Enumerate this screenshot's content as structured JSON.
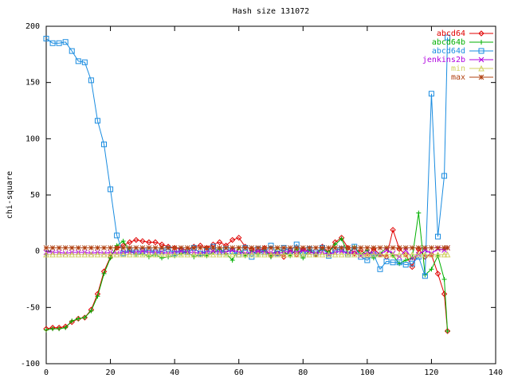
{
  "chart_data": {
    "type": "line",
    "title": "Hash size 131072",
    "y_label": "chi-square",
    "x": [
      0,
      2,
      4,
      6,
      8,
      10,
      12,
      14,
      16,
      18,
      20,
      22,
      24,
      26,
      28,
      30,
      32,
      34,
      36,
      38,
      40,
      42,
      44,
      46,
      48,
      50,
      52,
      54,
      56,
      58,
      60,
      62,
      64,
      66,
      68,
      70,
      72,
      74,
      76,
      78,
      80,
      82,
      84,
      86,
      88,
      90,
      92,
      94,
      96,
      98,
      100,
      102,
      104,
      106,
      108,
      110,
      112,
      114,
      116,
      118,
      120,
      122,
      124,
      125
    ],
    "series": [
      {
        "name": "abcd64",
        "color": "#e00000",
        "marker": "diamond",
        "values": [
          -69,
          -68,
          -68,
          -67,
          -63,
          -60,
          -59,
          -52,
          -38,
          -18,
          -5,
          3,
          5,
          8,
          10,
          9,
          8,
          8,
          6,
          4,
          3,
          2,
          1,
          4,
          5,
          3,
          6,
          8,
          5,
          10,
          12,
          4,
          2,
          0,
          3,
          -4,
          -2,
          -5,
          1,
          -3,
          2,
          0,
          -3,
          4,
          -1,
          8,
          12,
          3,
          -2,
          1,
          -4,
          2,
          -3,
          -5,
          19,
          2,
          -3,
          -14,
          2,
          -5,
          -3,
          -20,
          -38,
          -71
        ]
      },
      {
        "name": "abcd64b",
        "color": "#00b000",
        "marker": "plus",
        "values": [
          -70,
          -69,
          -69,
          -68,
          -62,
          -60,
          -59,
          -53,
          -40,
          -20,
          -6,
          5,
          9,
          0,
          -3,
          -2,
          -5,
          -3,
          -6,
          -5,
          -4,
          -2,
          -1,
          -5,
          -3,
          -4,
          -1,
          2,
          -2,
          -8,
          3,
          -4,
          0,
          -3,
          1,
          -5,
          3,
          -1,
          -4,
          2,
          -6,
          1,
          -3,
          2,
          -1,
          6,
          11,
          -2,
          4,
          -3,
          1,
          -6,
          -2,
          3,
          -4,
          -11,
          -8,
          -6,
          34,
          -21,
          -16,
          -4,
          -25,
          -71
        ]
      },
      {
        "name": "abcd64d",
        "color": "#1a8ce0",
        "marker": "square",
        "values": [
          189,
          185,
          185,
          186,
          178,
          169,
          168,
          152,
          116,
          95,
          55,
          14,
          -2,
          1,
          -1,
          0,
          1,
          -1,
          0,
          2,
          -2,
          1,
          -1,
          3,
          -2,
          0,
          4,
          -1,
          2,
          0,
          -3,
          3,
          -5,
          2,
          -1,
          5,
          -2,
          3,
          0,
          6,
          -3,
          2,
          -1,
          3,
          -4,
          1,
          2,
          -3,
          4,
          -5,
          -8,
          -3,
          -16,
          -9,
          -10,
          -10,
          -12,
          -11,
          -5,
          -22,
          140,
          13,
          67,
          190
        ]
      },
      {
        "name": "jenkins2b",
        "color": "#b000e0",
        "marker": "cross",
        "values": [
          -1,
          -1,
          -1,
          -2,
          -1,
          -1,
          -1,
          -2,
          -1,
          -2,
          -1,
          -2,
          -1,
          -1,
          -1,
          0,
          -1,
          -1,
          -1,
          -2,
          -1,
          0,
          -1,
          -1,
          -2,
          -1,
          0,
          -1,
          -1,
          1,
          -1,
          -2,
          -1,
          0,
          -1,
          -1,
          -2,
          -1,
          0,
          -1,
          1,
          -1,
          -2,
          -1,
          -3,
          -1,
          0,
          -2,
          -1,
          -4,
          -1,
          -2,
          -3,
          1,
          -2,
          -5,
          1,
          -6,
          -3,
          1,
          -2,
          2,
          1,
          3
        ]
      },
      {
        "name": "min",
        "color": "#d0d060",
        "marker": "triangle",
        "values": [
          -3,
          -3,
          -3,
          -3,
          -3,
          -3,
          -3,
          -3,
          -3,
          -3,
          -3,
          -3,
          -3,
          -3,
          -3,
          -3,
          -3,
          -3,
          -3,
          -3,
          -3,
          -3,
          -3,
          -3,
          -3,
          -3,
          -3,
          -3,
          -3,
          -3,
          -3,
          -3,
          -3,
          -3,
          -3,
          -3,
          -3,
          -3,
          -3,
          -3,
          -3,
          -3,
          -3,
          -3,
          -3,
          -3,
          -3,
          -3,
          -3,
          -3,
          -3,
          -3,
          -3,
          -3,
          -3,
          -3,
          -3,
          -3,
          -3,
          -3,
          -3,
          -3,
          -3,
          -3
        ]
      },
      {
        "name": "max",
        "color": "#b04010",
        "marker": "star",
        "values": [
          3,
          3,
          3,
          3,
          3,
          3,
          3,
          3,
          3,
          3,
          3,
          3,
          3,
          3,
          3,
          3,
          3,
          3,
          3,
          3,
          3,
          3,
          3,
          3,
          3,
          3,
          3,
          3,
          3,
          3,
          3,
          3,
          3,
          3,
          3,
          3,
          3,
          3,
          3,
          3,
          3,
          3,
          3,
          3,
          3,
          3,
          3,
          3,
          3,
          3,
          3,
          3,
          3,
          3,
          3,
          3,
          3,
          3,
          3,
          3,
          3,
          3,
          3,
          3
        ]
      }
    ],
    "xlim": [
      0,
      140
    ],
    "xticks": [
      0,
      20,
      40,
      60,
      80,
      100,
      120,
      140
    ],
    "ylim": [
      -100,
      200
    ],
    "yticks": [
      -100,
      -50,
      0,
      50,
      100,
      150,
      200
    ],
    "legend": "top right"
  }
}
